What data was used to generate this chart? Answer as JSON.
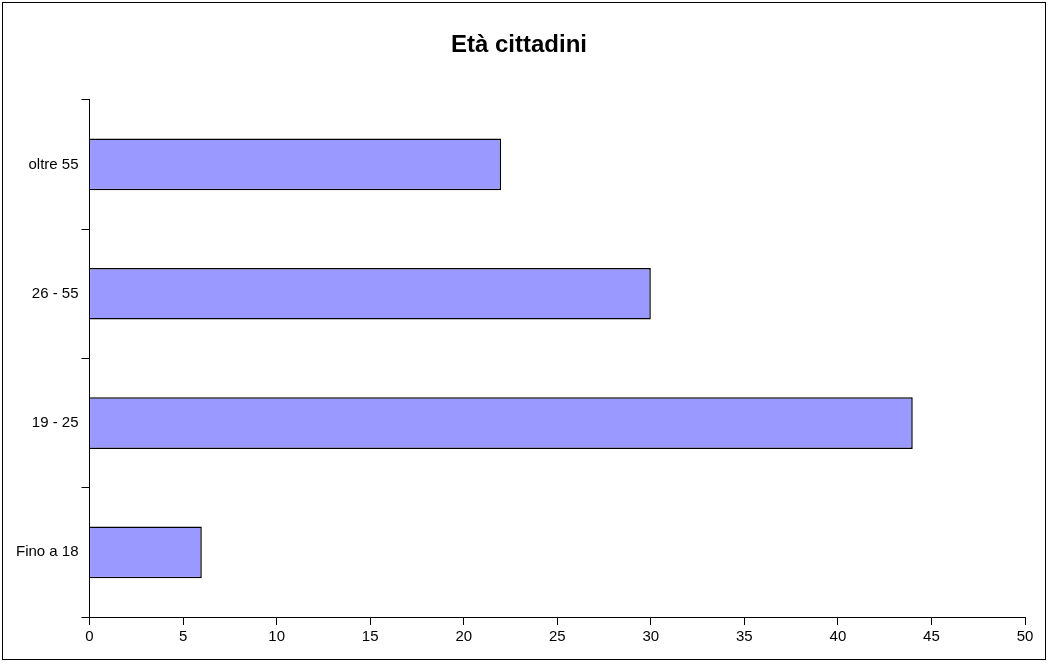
{
  "chart_data": {
    "type": "bar",
    "title": "Età cittadini",
    "orientation": "horizontal",
    "categories": [
      "oltre 55",
      "26 - 55",
      "19 - 25",
      "Fino a 18"
    ],
    "values": [
      22,
      30,
      44,
      6
    ],
    "color": "#9999ff",
    "xlim": [
      0,
      50
    ],
    "xticks": [
      0,
      5,
      10,
      15,
      20,
      25,
      30,
      35,
      40,
      45,
      50
    ],
    "grid": false,
    "legend": false
  }
}
